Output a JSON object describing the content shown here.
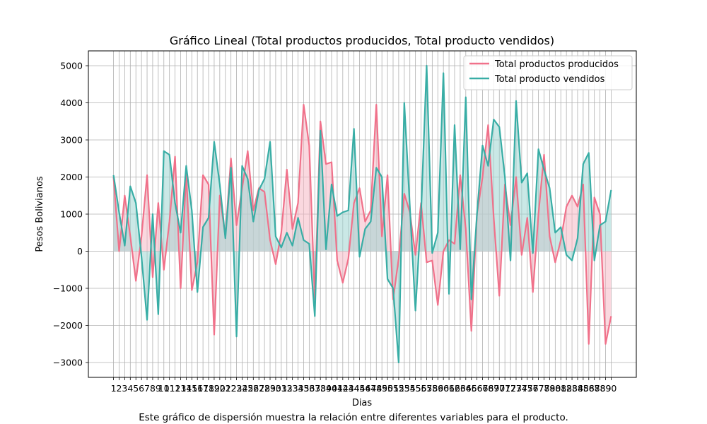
{
  "chart_data": {
    "type": "line",
    "title": "Gráfico Lineal (Total productos producidos, Total producto vendidos)",
    "xlabel": "Dias",
    "ylabel": "Pesos Bolivianos",
    "caption": "Este gráfico de dispersión muestra la relación entre diferentes variables para el producto.",
    "xlim": [
      -3.5,
      94.5
    ],
    "ylim": [
      -3400,
      5400
    ],
    "yticks": [
      -3000,
      -2000,
      -1000,
      0,
      1000,
      2000,
      3000,
      4000,
      5000
    ],
    "grid": true,
    "legend_position": "top-right",
    "x": [
      1,
      2,
      3,
      4,
      5,
      6,
      7,
      8,
      9,
      10,
      11,
      12,
      13,
      14,
      15,
      16,
      17,
      18,
      19,
      20,
      21,
      22,
      23,
      24,
      25,
      26,
      27,
      28,
      29,
      30,
      31,
      32,
      33,
      34,
      35,
      36,
      37,
      38,
      39,
      40,
      41,
      42,
      43,
      44,
      45,
      46,
      47,
      48,
      49,
      50,
      51,
      52,
      53,
      54,
      55,
      56,
      57,
      58,
      59,
      60,
      61,
      62,
      63,
      64,
      65,
      66,
      67,
      68,
      69,
      70,
      71,
      72,
      73,
      74,
      75,
      76,
      77,
      78,
      79,
      80,
      81,
      82,
      83,
      84,
      85,
      86,
      87,
      88,
      89,
      90
    ],
    "series": [
      {
        "name": "Total productos producidos",
        "color": "#f0718a",
        "fill": "#f5b8c4",
        "values": [
          2000,
          0,
          1500,
          400,
          -800,
          400,
          2050,
          -700,
          1300,
          -500,
          800,
          2550,
          -1000,
          2100,
          -1050,
          -300,
          2050,
          1800,
          -2250,
          1500,
          400,
          2500,
          700,
          1700,
          2700,
          1100,
          1700,
          1600,
          300,
          -350,
          500,
          2200,
          600,
          1300,
          3950,
          2850,
          -1300,
          3500,
          2350,
          2400,
          -250,
          -850,
          -200,
          1300,
          1700,
          800,
          1100,
          3950,
          400,
          2050,
          -1300,
          -200,
          1550,
          1050,
          -100,
          1300,
          -300,
          -250,
          -1450,
          0,
          300,
          200,
          2050,
          600,
          -2150,
          1000,
          2000,
          3400,
          900,
          -1200,
          1800,
          700,
          2000,
          -100,
          900,
          -1100,
          1000,
          2600,
          400,
          -300,
          300,
          1200,
          1500,
          1200,
          1800,
          -2500,
          1450,
          1000,
          -2500,
          -1750
        ]
      },
      {
        "name": "Total producto vendidos",
        "color": "#38ada5",
        "fill": "#9fd6d1",
        "values": [
          2050,
          1050,
          150,
          1750,
          1300,
          -150,
          -1850,
          1000,
          -1700,
          2700,
          2600,
          1300,
          500,
          2300,
          1100,
          -1100,
          650,
          900,
          2950,
          1800,
          350,
          2250,
          -2300,
          2300,
          1950,
          800,
          1650,
          1950,
          2950,
          400,
          100,
          500,
          150,
          900,
          300,
          200,
          -1750,
          3250,
          50,
          1800,
          950,
          1050,
          1100,
          3300,
          -150,
          600,
          800,
          2250,
          2000,
          -750,
          -1000,
          -3000,
          4000,
          1200,
          -1600,
          1000,
          5000,
          -50,
          500,
          4800,
          -1150,
          3400,
          50,
          4150,
          -1300,
          1000,
          2850,
          2300,
          3550,
          3350,
          2000,
          -250,
          4050,
          1850,
          2100,
          -50,
          2750,
          2200,
          1700,
          500,
          650,
          -100,
          -250,
          350,
          2350,
          2650,
          -250,
          700,
          800,
          1650
        ]
      }
    ]
  }
}
